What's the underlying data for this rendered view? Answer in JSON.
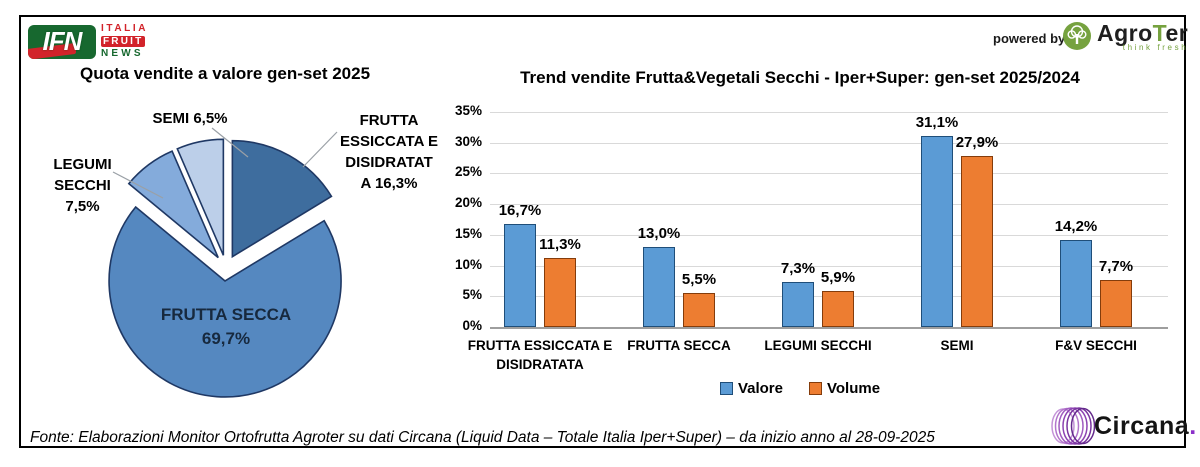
{
  "header": {
    "ifn_logo": {
      "ifn": "IFN",
      "line1": "ITALIA",
      "line2": "FRUIT",
      "line3": "NEWS"
    },
    "powered_by": "powered by",
    "agroter": {
      "name_parts": [
        "Agro",
        "T",
        "er"
      ],
      "tagline": "think fresh",
      "green": "#76a23f"
    }
  },
  "pie": {
    "title": "Quota vendite a valore gen-set 2025",
    "labels": {
      "semi": "SEMI 6,5%",
      "legumi": [
        "LEGUMI",
        "SECCHI 7,5%"
      ],
      "essiccata": [
        "FRUTTA",
        "ESSICCATA E",
        "DISIDRATAT",
        "A 16,3%"
      ],
      "frutta_secca": [
        "FRUTTA SECCA",
        "69,7%"
      ]
    }
  },
  "bar": {
    "title": "Trend vendite Frutta&Vegetali Secchi - Iper+Super: gen-set 2025/2024"
  },
  "chart_data": [
    {
      "type": "pie",
      "title": "Quota vendite a valore gen-set 2025",
      "unit": "%",
      "start_angle_deg": 0,
      "clockwise": true,
      "exploded": true,
      "slices": [
        {
          "label": "FRUTTA ESSICCATA E DISIDRATATA",
          "value": 16.3,
          "color": "#3E6D9E"
        },
        {
          "label": "FRUTTA SECCA",
          "value": 69.7,
          "color": "#5588C0"
        },
        {
          "label": "LEGUMI SECCHI",
          "value": 7.5,
          "color": "#84ABDB"
        },
        {
          "label": "SEMI",
          "value": 6.5,
          "color": "#BCCFE9"
        }
      ],
      "stroke_color": "#1F3864"
    },
    {
      "type": "bar",
      "title": "Trend vendite Frutta&Vegetali Secchi - Iper+Super: gen-set 2025/2024",
      "categories": [
        "FRUTTA ESSICCATA E DISIDRATATA",
        "FRUTTA SECCA",
        "LEGUMI SECCHI",
        "SEMI",
        "F&V SECCHI"
      ],
      "series": [
        {
          "name": "Valore",
          "color": "#5B9BD5",
          "border": "#1F4E79",
          "values": [
            16.7,
            13.0,
            7.3,
            31.1,
            14.2
          ]
        },
        {
          "name": "Volume",
          "color": "#ED7D31",
          "border": "#843C0B",
          "values": [
            11.3,
            5.5,
            5.9,
            27.9,
            7.7
          ]
        }
      ],
      "ylim": [
        0,
        35
      ],
      "ytick_step": 5,
      "value_suffix": "%",
      "decimal_separator": ",",
      "grid": true,
      "legend_position": "bottom"
    }
  ],
  "footer": {
    "source": "Fonte: Elaborazioni Monitor Ortofrutta Agroter su dati Circana (Liquid Data – Totale Italia Iper+Super) –  da inizio anno al 28-09-2025",
    "circana": {
      "name": "Circana",
      "dot": "."
    }
  }
}
